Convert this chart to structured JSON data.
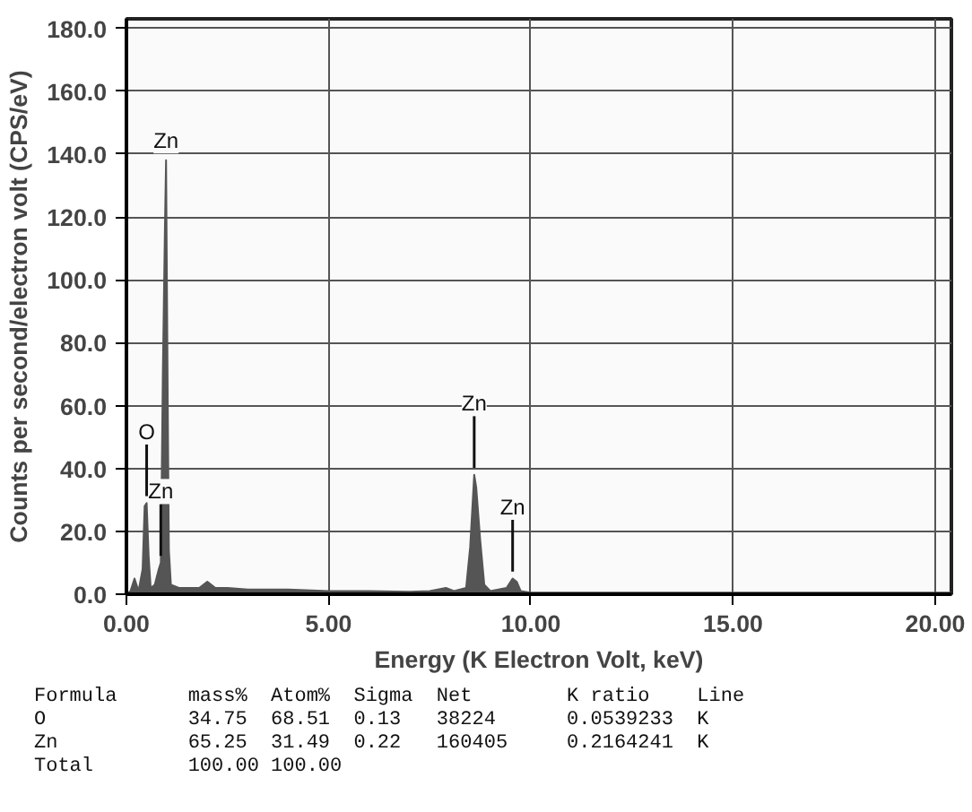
{
  "chart_data": {
    "type": "area",
    "xlabel": "Energy (K Electron Volt, keV)",
    "ylabel": "Counts per second/electron volt (CPS/eV)",
    "x": [
      0.0,
      0.1,
      0.2,
      0.25,
      0.3,
      0.4,
      0.45,
      0.5,
      0.55,
      0.6,
      0.7,
      0.8,
      0.85,
      0.9,
      0.95,
      0.98,
      1.02,
      1.05,
      1.1,
      1.3,
      1.5,
      1.8,
      2.0,
      2.2,
      2.5,
      3.0,
      3.5,
      4.0,
      5.0,
      6.0,
      7.0,
      7.5,
      7.9,
      8.1,
      8.4,
      8.5,
      8.6,
      8.65,
      8.75,
      8.85,
      9.0,
      9.4,
      9.5,
      9.55,
      9.65,
      9.75,
      10.0,
      15.0,
      20.0,
      20.4
    ],
    "values": [
      0,
      1,
      5,
      3,
      1,
      8,
      28,
      29,
      12,
      2,
      3,
      8,
      10,
      70,
      115,
      138,
      64,
      14,
      3,
      2,
      2,
      2,
      4,
      2,
      2,
      1.5,
      1.5,
      1.5,
      1,
      1,
      0.8,
      1,
      2,
      1,
      2,
      15,
      38,
      34,
      17,
      3,
      1,
      2,
      4,
      5,
      4,
      1,
      0.5,
      0.5,
      0.5,
      0.5
    ],
    "color": "#555555",
    "xlim": [
      0,
      20.4
    ],
    "ylim": [
      0,
      183
    ],
    "xticks": [
      {
        "value": 0,
        "label": "0.00"
      },
      {
        "value": 5,
        "label": "5.00"
      },
      {
        "value": 10,
        "label": "10.00"
      },
      {
        "value": 15,
        "label": "15.00"
      },
      {
        "value": 20,
        "label": "20.00"
      }
    ],
    "yticks": [
      {
        "value": 0,
        "label": "0.0"
      },
      {
        "value": 20,
        "label": "20.0"
      },
      {
        "value": 40,
        "label": "40.0"
      },
      {
        "value": 60,
        "label": "60.0"
      },
      {
        "value": 80,
        "label": "80.0"
      },
      {
        "value": 100,
        "label": "100.0"
      },
      {
        "value": 120,
        "label": "120.0"
      },
      {
        "value": 140,
        "label": "140.0"
      },
      {
        "value": 160,
        "label": "160.0"
      },
      {
        "value": 180,
        "label": "180.0"
      }
    ],
    "grid": true,
    "annotations": [
      {
        "text": "Zn",
        "x": 0.98,
        "y": 138
      },
      {
        "text": "O",
        "x": 0.5,
        "y": 29
      },
      {
        "text": "Zn",
        "x": 0.85,
        "y": 10
      },
      {
        "text": "Zn",
        "x": 8.6,
        "y": 38
      },
      {
        "text": "Zn",
        "x": 9.55,
        "y": 5
      },
      "Formula      mass%  Atom%  Sigma  Net        K ratio    Line",
      "O            34.75  68.51  0.13   38224      0.0539233  K",
      "Zn           65.25  31.49  0.22   160405     0.2164241  K",
      "Total        100.00 100.00"
    ]
  }
}
